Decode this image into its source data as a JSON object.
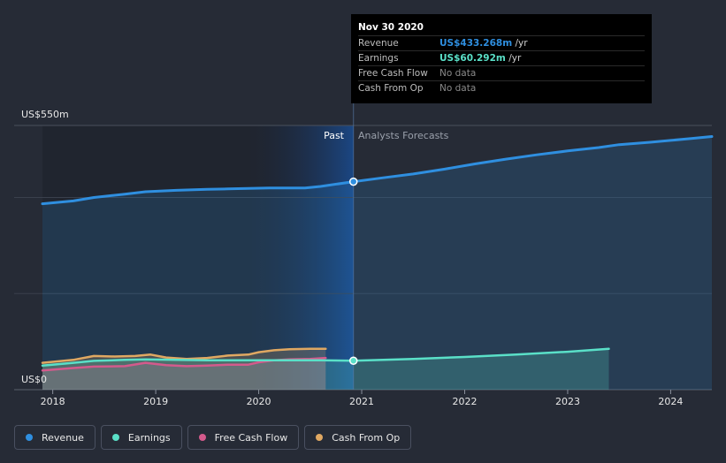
{
  "chart_data": {
    "type": "area",
    "y_unit_prefix": "US$",
    "y_top_label": "US$550m",
    "y_bottom_label": "US$0",
    "ylim": [
      0,
      550
    ],
    "xlim": [
      2017.9,
      2024.4
    ],
    "x_ticks": [
      {
        "value": 2018,
        "label": "2018"
      },
      {
        "value": 2019,
        "label": "2019"
      },
      {
        "value": 2020,
        "label": "2020"
      },
      {
        "value": 2021,
        "label": "2021"
      },
      {
        "value": 2022,
        "label": "2022"
      },
      {
        "value": 2023,
        "label": "2023"
      },
      {
        "value": 2024,
        "label": "2024"
      }
    ],
    "divider_x": 2020.92,
    "past_label": "Past",
    "forecast_label": "Analysts Forecasts",
    "series": [
      {
        "name": "Revenue",
        "color": "#2f8fe0",
        "x": [
          2017.9,
          2018.2,
          2018.4,
          2018.7,
          2018.9,
          2019.2,
          2019.5,
          2019.7,
          2019.9,
          2020.1,
          2020.3,
          2020.45,
          2020.6,
          2020.92,
          2021.2,
          2021.5,
          2021.8,
          2022.1,
          2022.4,
          2022.7,
          2023.0,
          2023.3,
          2023.5,
          2023.8,
          2024.0,
          2024.2,
          2024.4
        ],
        "values": [
          387,
          393,
          400,
          407,
          412,
          415,
          417,
          418,
          419,
          420,
          420,
          420,
          423,
          433,
          441,
          449,
          459,
          470,
          480,
          489,
          497,
          504,
          510,
          515,
          519,
          523,
          527
        ]
      },
      {
        "name": "Earnings",
        "color": "#5ae0c8",
        "x": [
          2017.9,
          2018.2,
          2018.4,
          2018.7,
          2018.9,
          2019.2,
          2019.5,
          2019.7,
          2019.9,
          2020.1,
          2020.3,
          2020.45,
          2020.6,
          2020.92,
          2021.5,
          2022.0,
          2022.5,
          2023.0,
          2023.4
        ],
        "values": [
          50,
          56,
          60,
          62,
          63,
          62,
          61,
          61,
          61,
          61,
          61,
          61,
          61,
          60.3,
          64,
          68,
          73,
          79,
          85
        ]
      },
      {
        "name": "Free Cash Flow",
        "color": "#d45a8c",
        "x": [
          2017.9,
          2018.2,
          2018.4,
          2018.7,
          2018.9,
          2019.1,
          2019.3,
          2019.5,
          2019.7,
          2019.9,
          2020.0,
          2020.15,
          2020.3,
          2020.5,
          2020.65
        ],
        "values": [
          40,
          45,
          48,
          49,
          56,
          51,
          49,
          50,
          52,
          52,
          57,
          61,
          63,
          64,
          66
        ]
      },
      {
        "name": "Cash From Op",
        "color": "#e0a862",
        "x": [
          2017.9,
          2018.2,
          2018.4,
          2018.6,
          2018.8,
          2018.95,
          2019.1,
          2019.3,
          2019.5,
          2019.7,
          2019.9,
          2020.0,
          2020.15,
          2020.3,
          2020.5,
          2020.65
        ],
        "values": [
          56,
          62,
          70,
          69,
          70,
          73,
          67,
          64,
          66,
          71,
          73,
          78,
          82,
          84,
          85,
          85
        ]
      }
    ]
  },
  "tooltip": {
    "date": "Nov 30 2020",
    "rows": [
      {
        "label": "Revenue",
        "value": "US$433.268m",
        "unit": "/yr",
        "color": "#2f8fe0"
      },
      {
        "label": "Earnings",
        "value": "US$60.292m",
        "unit": "/yr",
        "color": "#5ae0c8"
      },
      {
        "label": "Free Cash Flow",
        "value": "No data",
        "unit": "",
        "color": ""
      },
      {
        "label": "Cash From Op",
        "value": "No data",
        "unit": "",
        "color": ""
      }
    ]
  },
  "legend": [
    {
      "label": "Revenue",
      "color": "#2f8fe0"
    },
    {
      "label": "Earnings",
      "color": "#5ae0c8"
    },
    {
      "label": "Free Cash Flow",
      "color": "#d45a8c"
    },
    {
      "label": "Cash From Op",
      "color": "#e0a862"
    }
  ]
}
